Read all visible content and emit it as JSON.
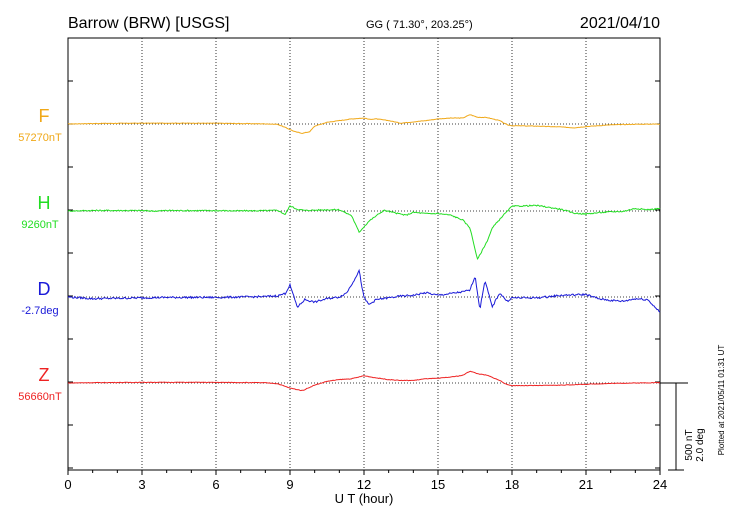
{
  "header": {
    "station": "Barrow (BRW)  [USGS]",
    "coords": "GG ( 71.30°, 203.25°)",
    "date": "2021/04/10"
  },
  "plotted_note": "Plotted at 2021/05/11 01:31 UT",
  "scale_note": {
    "nt": "500 nT",
    "deg": "2.0 deg"
  },
  "chart_data": {
    "type": "line",
    "title": "Barrow (BRW)  [USGS]",
    "xlabel": "U T (hour)",
    "ylabel": "",
    "xlim": [
      0,
      24
    ],
    "xticks": [
      0,
      3,
      6,
      9,
      12,
      15,
      18,
      21,
      24
    ],
    "grid": true,
    "series": [
      {
        "name": "F",
        "baseline_label": "57270nT",
        "color": "#f0a818",
        "offset_scale": [
          [
            0,
            0
          ],
          [
            1,
            6
          ],
          [
            2,
            8
          ],
          [
            3,
            10
          ],
          [
            4,
            10
          ],
          [
            5,
            10
          ],
          [
            6,
            9
          ],
          [
            7,
            5
          ],
          [
            8,
            2
          ],
          [
            8.5,
            -4
          ],
          [
            8.8,
            -40
          ],
          [
            9.2,
            -90
          ],
          [
            9.5,
            -110
          ],
          [
            9.8,
            -90
          ],
          [
            10,
            -25
          ],
          [
            10.5,
            20
          ],
          [
            11,
            40
          ],
          [
            11.5,
            60
          ],
          [
            12,
            70
          ],
          [
            12.2,
            55
          ],
          [
            12.5,
            60
          ],
          [
            13,
            40
          ],
          [
            13.5,
            10
          ],
          [
            14,
            25
          ],
          [
            14.5,
            40
          ],
          [
            15,
            60
          ],
          [
            15.5,
            70
          ],
          [
            16,
            70
          ],
          [
            16.3,
            110
          ],
          [
            16.6,
            80
          ],
          [
            17,
            75
          ],
          [
            17.5,
            40
          ],
          [
            17.8,
            -10
          ],
          [
            18,
            -20
          ],
          [
            19,
            -25
          ],
          [
            20,
            -35
          ],
          [
            20.5,
            -45
          ],
          [
            21,
            -30
          ],
          [
            22,
            -10
          ],
          [
            23,
            -3
          ],
          [
            24,
            0
          ]
        ]
      },
      {
        "name": "H",
        "baseline_label": "9260nT",
        "color": "#22dd22",
        "offset_scale": [
          [
            0,
            0
          ],
          [
            1,
            6
          ],
          [
            2,
            6
          ],
          [
            3,
            5
          ],
          [
            3.5,
            -1
          ],
          [
            4,
            6
          ],
          [
            5,
            5
          ],
          [
            6,
            4
          ],
          [
            7,
            2
          ],
          [
            8,
            4
          ],
          [
            8.5,
            8
          ],
          [
            8.8,
            -40
          ],
          [
            9,
            60
          ],
          [
            9.3,
            20
          ],
          [
            9.6,
            7
          ],
          [
            10,
            10
          ],
          [
            10.5,
            15
          ],
          [
            11,
            15
          ],
          [
            11.5,
            -55
          ],
          [
            11.8,
            -250
          ],
          [
            12.2,
            -120
          ],
          [
            12.8,
            8
          ],
          [
            13.3,
            -25
          ],
          [
            13.7,
            -50
          ],
          [
            14,
            -15
          ],
          [
            14.5,
            -30
          ],
          [
            15,
            -30
          ],
          [
            15.5,
            -48
          ],
          [
            16,
            -105
          ],
          [
            16.3,
            -200
          ],
          [
            16.6,
            -570
          ],
          [
            17,
            -350
          ],
          [
            17.2,
            -200
          ],
          [
            17.6,
            -65
          ],
          [
            18,
            55
          ],
          [
            19,
            65
          ],
          [
            20,
            20
          ],
          [
            20.5,
            -25
          ],
          [
            21,
            -35
          ],
          [
            21.5,
            -20
          ],
          [
            22,
            -10
          ],
          [
            22.5,
            -5
          ],
          [
            23,
            30
          ],
          [
            23.5,
            15
          ],
          [
            24,
            30
          ]
        ]
      },
      {
        "name": "D",
        "baseline_label": "-2.7deg",
        "color": "#1a1ad8",
        "offset_scale": [
          [
            0,
            0
          ],
          [
            1,
            -20
          ],
          [
            2,
            -15
          ],
          [
            3,
            -10
          ],
          [
            4,
            -5
          ],
          [
            5,
            -5
          ],
          [
            6,
            -5
          ],
          [
            7,
            0
          ],
          [
            8,
            5
          ],
          [
            8.5,
            15
          ],
          [
            8.8,
            40
          ],
          [
            9,
            140
          ],
          [
            9.3,
            -120
          ],
          [
            9.6,
            -30
          ],
          [
            10,
            -60
          ],
          [
            10.5,
            -20
          ],
          [
            11,
            0
          ],
          [
            11.3,
            50
          ],
          [
            11.6,
            200
          ],
          [
            11.8,
            310
          ],
          [
            12,
            -10
          ],
          [
            12.2,
            -90
          ],
          [
            12.5,
            -30
          ],
          [
            13,
            -10
          ],
          [
            13.5,
            10
          ],
          [
            14,
            20
          ],
          [
            14.5,
            50
          ],
          [
            15,
            20
          ],
          [
            15.5,
            40
          ],
          [
            16,
            60
          ],
          [
            16.3,
            80
          ],
          [
            16.5,
            250
          ],
          [
            16.7,
            -150
          ],
          [
            16.9,
            200
          ],
          [
            17.2,
            -120
          ],
          [
            17.5,
            50
          ],
          [
            17.8,
            -50
          ],
          [
            18,
            -10
          ],
          [
            19,
            -10
          ],
          [
            20,
            20
          ],
          [
            21,
            30
          ],
          [
            21.5,
            -20
          ],
          [
            22,
            -40
          ],
          [
            22.5,
            -50
          ],
          [
            23,
            -20
          ],
          [
            23.5,
            -30
          ],
          [
            24,
            -180
          ]
        ]
      },
      {
        "name": "Z",
        "baseline_label": "56660nT",
        "color": "#ee2222",
        "offset_scale": [
          [
            0,
            0
          ],
          [
            1,
            4
          ],
          [
            2,
            6
          ],
          [
            3,
            8
          ],
          [
            4,
            8
          ],
          [
            5,
            8
          ],
          [
            6,
            7
          ],
          [
            7,
            6
          ],
          [
            8,
            3
          ],
          [
            8.5,
            -8
          ],
          [
            9,
            -60
          ],
          [
            9.5,
            -90
          ],
          [
            10,
            -25
          ],
          [
            10.5,
            20
          ],
          [
            11,
            40
          ],
          [
            11.5,
            50
          ],
          [
            12,
            85
          ],
          [
            12.5,
            60
          ],
          [
            13,
            40
          ],
          [
            13.5,
            30
          ],
          [
            14,
            30
          ],
          [
            14.5,
            50
          ],
          [
            15,
            55
          ],
          [
            15.5,
            70
          ],
          [
            16,
            90
          ],
          [
            16.3,
            140
          ],
          [
            16.6,
            110
          ],
          [
            17,
            90
          ],
          [
            17.5,
            30
          ],
          [
            17.8,
            -20
          ],
          [
            18,
            -30
          ],
          [
            19,
            -30
          ],
          [
            20,
            -25
          ],
          [
            21,
            -15
          ],
          [
            22,
            -5
          ],
          [
            23,
            0
          ],
          [
            24,
            5
          ]
        ]
      }
    ]
  }
}
